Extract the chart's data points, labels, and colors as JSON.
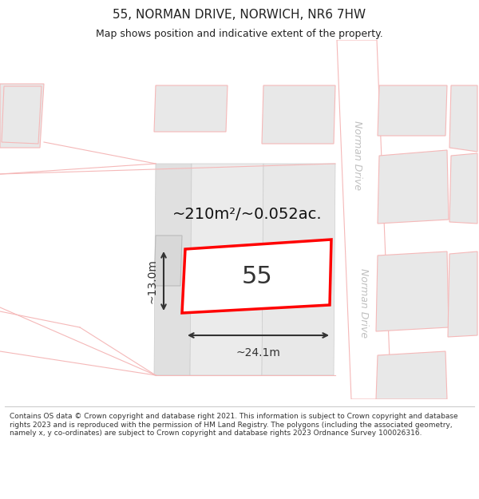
{
  "title": "55, NORMAN DRIVE, NORWICH, NR6 7HW",
  "subtitle": "Map shows position and indicative extent of the property.",
  "footer": "Contains OS data © Crown copyright and database right 2021. This information is subject to Crown copyright and database rights 2023 and is reproduced with the permission of HM Land Registry. The polygons (including the associated geometry, namely x, y co-ordinates) are subject to Crown copyright and database rights 2023 Ordnance Survey 100026316.",
  "area_label": "~210m²/~0.052ac.",
  "property_number": "55",
  "width_label": "~24.1m",
  "height_label": "~13.0m",
  "bg_color": "#ffffff",
  "map_bg": "#ffffff",
  "building_fill": "#e8e8e8",
  "building_edge": "#f5b8b8",
  "road_fill": "#ffffff",
  "road_edge": "#f5b8b8",
  "plot_fill": "#ffffff",
  "plot_edge": "#ff0000",
  "road_label_color": "#c0c0c0",
  "dim_color": "#333333",
  "text_color": "#222222"
}
